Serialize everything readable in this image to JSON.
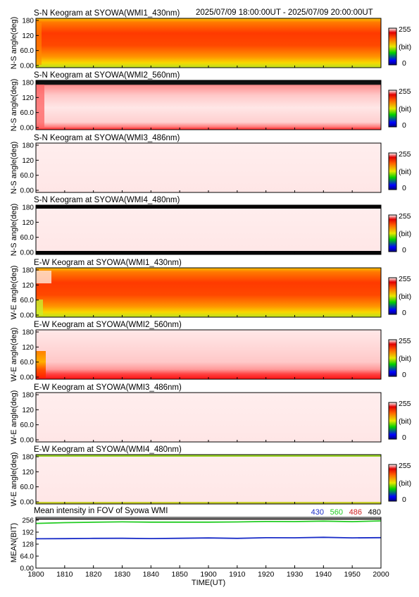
{
  "header": {
    "time_range": "2025/07/09 18:00:00UT - 2025/07/09 20:00:00UT"
  },
  "colorbar": {
    "max_label": "255",
    "unit_label": "(bit)",
    "min_label": "0"
  },
  "y_ticks": [
    "180",
    "120",
    "60.0",
    "0.00"
  ],
  "panels": [
    {
      "title": "S-N Keogram at SYOWA(WMI1_430nm)",
      "ylabel": "N-S angle(deg)",
      "kind": "red_yellow"
    },
    {
      "title": "S-N Keogram at SYOWA(WMI2_560nm)",
      "ylabel": "N-S angle(deg)",
      "kind": "pale_red"
    },
    {
      "title": "S-N Keogram at SYOWA(WMI3_486nm)",
      "ylabel": "N-S angle(deg)",
      "kind": "very_pale"
    },
    {
      "title": "S-N Keogram at SYOWA(WMI4_480nm)",
      "ylabel": "N-S angle(deg)",
      "kind": "very_pale_black_edge"
    },
    {
      "title": "E-W Keogram at SYOWA(WMI1_430nm)",
      "ylabel": "W-E angle(deg)",
      "kind": "red_yellow"
    },
    {
      "title": "E-W Keogram at SYOWA(WMI2_560nm)",
      "ylabel": "W-E angle(deg)",
      "kind": "pale_red_bottom"
    },
    {
      "title": "E-W Keogram at SYOWA(WMI3_486nm)",
      "ylabel": "W-E angle(deg)",
      "kind": "very_pale"
    },
    {
      "title": "E-W Keogram at SYOWA(WMI4_480nm)",
      "ylabel": "W-E angle(deg)",
      "kind": "very_pale_green_edge"
    }
  ],
  "mean_panel": {
    "title": "Mean intensity in FOV of Syowa WMI",
    "ylabel": "MEAN(BIT)",
    "xlabel": "TIME(UT)",
    "y_ticks": [
      "256",
      "192",
      "128",
      "64.0",
      "0.00"
    ],
    "legend": [
      {
        "label": "430",
        "color": "#1a2dc8"
      },
      {
        "label": "560",
        "color": "#22cc22"
      },
      {
        "label": "486",
        "color": "#cc2222"
      },
      {
        "label": "480",
        "color": "#000000"
      }
    ]
  },
  "chart_data": {
    "type": "line",
    "title": "Mean intensity in FOV of Syowa WMI",
    "xlabel": "TIME(UT)",
    "ylabel": "MEAN(BIT)",
    "x_ticks": [
      "1800",
      "1810",
      "1820",
      "1830",
      "1840",
      "1850",
      "1900",
      "1910",
      "1920",
      "1930",
      "1940",
      "1950",
      "2000"
    ],
    "ylim": [
      0,
      256
    ],
    "x": [
      "1800",
      "1810",
      "1820",
      "1830",
      "1840",
      "1850",
      "1900",
      "1910",
      "1920",
      "1930",
      "1940",
      "1950",
      "2000"
    ],
    "series": [
      {
        "name": "430",
        "color": "#1a2dc8",
        "values": [
          152,
          153,
          154,
          155,
          153,
          155,
          156,
          155,
          157,
          158,
          159,
          158,
          157
        ]
      },
      {
        "name": "560",
        "color": "#22cc22",
        "values": [
          232,
          236,
          238,
          240,
          238,
          239,
          238,
          240,
          241,
          242,
          243,
          242,
          244
        ]
      },
      {
        "name": "486",
        "color": "#cc2222",
        "values": [
          255,
          255,
          255,
          255,
          255,
          255,
          255,
          255,
          255,
          255,
          255,
          255,
          255
        ]
      },
      {
        "name": "480",
        "color": "#000000",
        "values": [
          255,
          255,
          255,
          255,
          255,
          255,
          255,
          255,
          255,
          255,
          255,
          255,
          255
        ]
      }
    ]
  }
}
